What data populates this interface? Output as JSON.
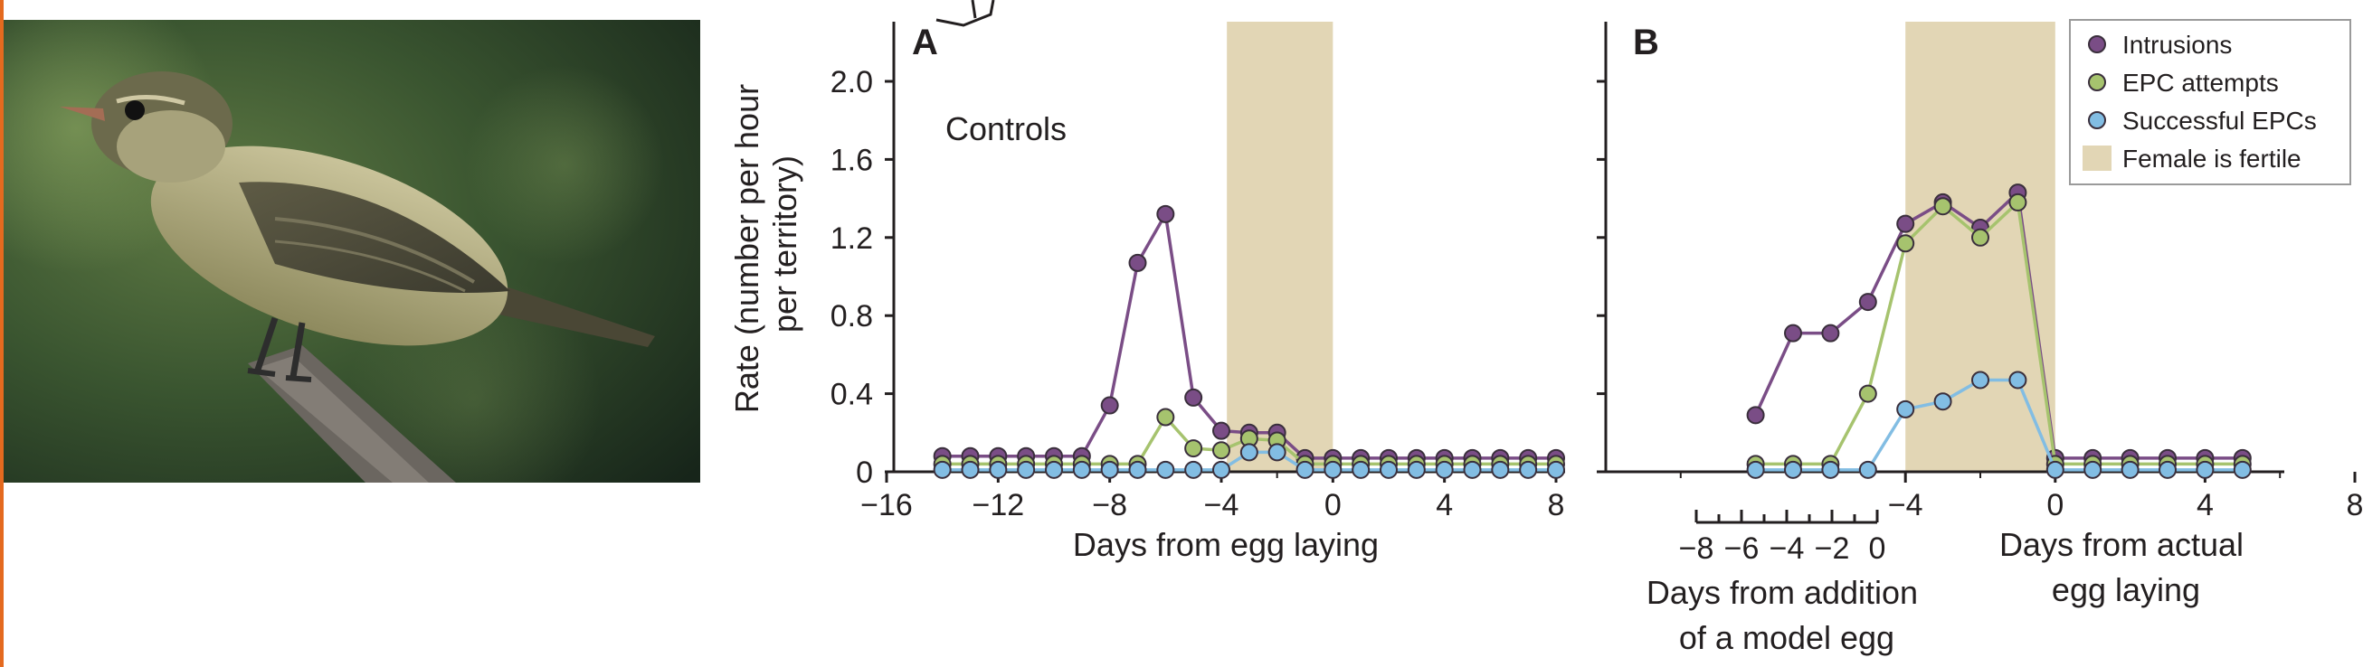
{
  "colors": {
    "intrusions": "#7a4d86",
    "epc_attempts": "#a6c36e",
    "successful_epcs": "#82bde3",
    "fertile_shading": "#e2d6b5",
    "axis": "#231f20"
  },
  "photo": {
    "description_icon": "warbler-photo"
  },
  "chart_data": [
    {
      "type": "line",
      "panel_label": "A",
      "annotation": "Controls",
      "xlabel": "Days from egg laying",
      "ylabel": "Rate (number per hour per territory)",
      "ylabel_lines": [
        "Rate (number per hour",
        "per territory)"
      ],
      "xlim": [
        -16,
        8
      ],
      "ylim": [
        0,
        2.0
      ],
      "x_ticks": [
        -16,
        -12,
        -8,
        -4,
        0,
        4,
        8
      ],
      "y_ticks": [
        0,
        0.4,
        0.8,
        1.2,
        1.6,
        2.0
      ],
      "y_tick_labels": [
        "0",
        "0.4",
        "0.8",
        "1.2",
        "1.6",
        "2.0"
      ],
      "fertile_period": [
        -3.8,
        0
      ],
      "series": [
        {
          "name": "Intrusions",
          "color_key": "intrusions",
          "x": [
            -14,
            -13,
            -12,
            -11,
            -10,
            -9,
            -8,
            -7,
            -6,
            -5,
            -4,
            -3,
            -2,
            -1,
            0,
            1,
            2,
            3,
            4,
            5,
            6,
            7,
            8
          ],
          "y": [
            0.08,
            0.08,
            0.08,
            0.08,
            0.08,
            0.08,
            0.34,
            1.07,
            1.32,
            0.38,
            0.21,
            0.2,
            0.2,
            0.07,
            0.07,
            0.07,
            0.07,
            0.07,
            0.07,
            0.07,
            0.07,
            0.07,
            0.07
          ]
        },
        {
          "name": "EPC attempts",
          "color_key": "epc_attempts",
          "x": [
            -14,
            -13,
            -12,
            -11,
            -10,
            -9,
            -8,
            -7,
            -6,
            -5,
            -4,
            -3,
            -2,
            -1,
            0,
            1,
            2,
            3,
            4,
            5,
            6,
            7,
            8
          ],
          "y": [
            0.04,
            0.04,
            0.04,
            0.04,
            0.04,
            0.04,
            0.04,
            0.04,
            0.28,
            0.12,
            0.11,
            0.17,
            0.16,
            0.04,
            0.04,
            0.04,
            0.04,
            0.04,
            0.04,
            0.04,
            0.04,
            0.04,
            0.04
          ]
        },
        {
          "name": "Successful EPCs",
          "color_key": "successful_epcs",
          "x": [
            -14,
            -13,
            -12,
            -11,
            -10,
            -9,
            -8,
            -7,
            -6,
            -5,
            -4,
            -3,
            -2,
            -1,
            0,
            1,
            2,
            3,
            4,
            5,
            6,
            7,
            8
          ],
          "y": [
            0.01,
            0.01,
            0.01,
            0.01,
            0.01,
            0.01,
            0.01,
            0.01,
            0.01,
            0.01,
            0.01,
            0.1,
            0.1,
            0.01,
            0.01,
            0.01,
            0.01,
            0.01,
            0.01,
            0.01,
            0.01,
            0.01,
            0.01
          ]
        }
      ]
    },
    {
      "type": "line",
      "panel_label": "B",
      "xlabel": "Days from actual egg laying",
      "xlabel_lines": [
        "Days from actual",
        "egg laying"
      ],
      "secondary_xlabel": "Days from addition of a model egg",
      "secondary_xlabel_lines": [
        "Days from addition",
        "of a model egg"
      ],
      "xlim": [
        -12,
        10
      ],
      "ylim": [
        0,
        2.0
      ],
      "x_ticks": [
        -4,
        0,
        4,
        8
      ],
      "secondary_x_ticks": [
        -8,
        -6,
        -4,
        -2,
        0
      ],
      "fertile_period": [
        -4,
        0
      ],
      "series": [
        {
          "name": "Intrusions",
          "color_key": "intrusions",
          "x": [
            -8,
            -7,
            -6,
            -5,
            -4,
            -3,
            -2,
            -1,
            0,
            1,
            2,
            3,
            4,
            5
          ],
          "y": [
            0.29,
            0.71,
            0.71,
            0.87,
            1.27,
            1.38,
            1.25,
            1.43,
            0.07,
            0.07,
            0.07,
            0.07,
            0.07,
            0.07
          ]
        },
        {
          "name": "EPC attempts",
          "color_key": "epc_attempts",
          "x": [
            -8,
            -7,
            -6,
            -5,
            -4,
            -3,
            -2,
            -1,
            0,
            1,
            2,
            3,
            4,
            5
          ],
          "y": [
            0.04,
            0.04,
            0.04,
            0.4,
            1.17,
            1.36,
            1.2,
            1.38,
            0.04,
            0.04,
            0.04,
            0.04,
            0.04,
            0.04
          ]
        },
        {
          "name": "Successful EPCs",
          "color_key": "successful_epcs",
          "x": [
            -8,
            -7,
            -6,
            -5,
            -4,
            -3,
            -2,
            -1,
            0,
            1,
            2,
            3,
            4,
            5
          ],
          "y": [
            0.01,
            0.01,
            0.01,
            0.01,
            0.32,
            0.36,
            0.47,
            0.47,
            0.01,
            0.01,
            0.01,
            0.01,
            0.01,
            0.01
          ]
        }
      ],
      "legend": {
        "placement": "top-right",
        "items": [
          {
            "label": "Intrusions",
            "color_key": "intrusions",
            "marker": "circle"
          },
          {
            "label": "EPC attempts",
            "color_key": "epc_attempts",
            "marker": "circle"
          },
          {
            "label": "Successful EPCs",
            "color_key": "successful_epcs",
            "marker": "circle"
          },
          {
            "label": "Female is fertile",
            "color_key": "fertile_shading",
            "marker": "rect"
          }
        ]
      }
    }
  ]
}
